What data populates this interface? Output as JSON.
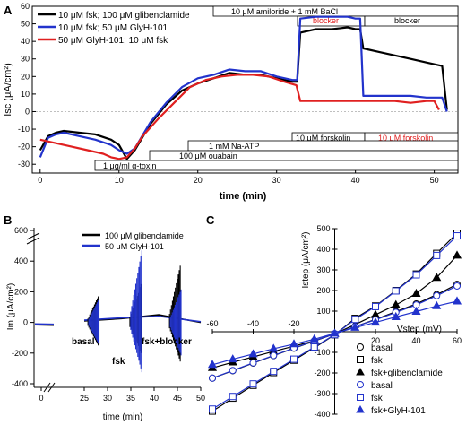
{
  "panel_labels": {
    "a": "A",
    "b": "B",
    "c": "C"
  },
  "colors": {
    "black": "#000000",
    "blue": "#2233cc",
    "red": "#e02020"
  },
  "chart_data": [
    {
      "panel": "A",
      "type": "line",
      "xlabel": "time (min)",
      "ylabel": "Isc (μA/cm²)",
      "xlim": [
        -1,
        53
      ],
      "ylim": [
        -35,
        60
      ],
      "xticks": [
        0,
        10,
        20,
        30,
        40,
        50
      ],
      "yticks": [
        -30,
        -20,
        -10,
        0,
        10,
        20,
        30,
        40,
        50,
        60
      ],
      "legend_position": "top-left",
      "series": [
        {
          "name": "10 μM fsk; 100 μM glibenclamide",
          "color": "#000000",
          "x": [
            0,
            1,
            2,
            3,
            5,
            7,
            9,
            10,
            11,
            12,
            14,
            16,
            18,
            20,
            22,
            24,
            26,
            28,
            30,
            32,
            32.6,
            33,
            35,
            37,
            39,
            40,
            40.6,
            41,
            43,
            45,
            47,
            49,
            51,
            51.6
          ],
          "y": [
            -22,
            -14,
            -12,
            -11,
            -12,
            -13,
            -16,
            -19,
            -27,
            -22,
            -7,
            4,
            12,
            16,
            19,
            22,
            21,
            21,
            19,
            17,
            17,
            45,
            47,
            47,
            48,
            47,
            47,
            36,
            34,
            32,
            30,
            28,
            26,
            1
          ]
        },
        {
          "name": "10 μM fsk; 50 μM GlyH-101",
          "color": "#2233cc",
          "x": [
            0,
            1,
            2,
            3,
            5,
            7,
            9,
            10,
            11,
            12,
            14,
            16,
            18,
            20,
            22,
            24,
            26,
            28,
            30,
            32,
            32.6,
            33,
            35,
            37,
            39,
            40,
            40.6,
            41,
            43,
            45,
            47,
            49,
            51,
            51.6
          ],
          "y": [
            -26,
            -15,
            -13,
            -12,
            -14,
            -16,
            -19,
            -22,
            -24,
            -21,
            -6,
            5,
            14,
            19,
            21,
            24,
            23,
            23,
            20,
            18,
            18,
            53,
            54,
            54,
            54,
            53,
            53,
            9,
            9,
            9,
            9,
            8,
            8,
            0
          ]
        },
        {
          "name": "50 μM GlyH-101; 10 μM fsk",
          "color": "#e02020",
          "x": [
            0,
            2,
            4,
            6,
            8,
            9,
            10,
            11,
            12,
            13,
            15,
            17,
            19,
            21,
            23,
            25,
            27,
            29,
            31,
            32.5,
            33,
            35,
            37,
            39,
            41,
            43,
            45,
            47,
            49,
            50,
            50.6
          ],
          "y": [
            -16,
            -18,
            -20,
            -22,
            -24,
            -26,
            -27,
            -26,
            -21,
            -14,
            -4,
            5,
            14,
            18,
            20,
            21,
            21,
            20,
            17,
            15,
            6,
            6,
            6,
            6,
            6,
            6,
            6,
            5,
            6,
            6,
            1
          ]
        }
      ],
      "annotations": {
        "amiloride": "10 μM amiloride + 1 mM BaCl",
        "blocker_1": "blocker",
        "blocker_2": "blocker",
        "forskolin_1": "10 μM forskolin",
        "forskolin_2": "10 μM forskolin",
        "atp": "1 mM Na-ATP",
        "ouabain": "100 μM ouabain",
        "toxin": "1 μg/ml α-toxin"
      }
    },
    {
      "panel": "B",
      "type": "line",
      "xlabel": "time (min)",
      "ylabel": "Im (μA/cm²)",
      "xlim": [
        0,
        50
      ],
      "ylim": [
        -400,
        600
      ],
      "xticks": [
        0,
        25,
        30,
        35,
        40,
        45,
        50
      ],
      "yticks": [
        -400,
        -200,
        0,
        200,
        400,
        600
      ],
      "axis_break": true,
      "legend_position": "top-right",
      "series": [
        {
          "name": "100 μM glibenclamide",
          "color": "#000000",
          "bursts": [
            {
              "t0": 25.8,
              "t1": 28.0,
              "max": 170,
              "min": -150
            },
            {
              "t0": 34.8,
              "t1": 37.2,
              "max": 250,
              "min": -200
            },
            {
              "t0": 43.3,
              "t1": 45.6,
              "max": 370,
              "min": -255
            }
          ]
        },
        {
          "name": "50 μM GlyH-101",
          "color": "#2233cc",
          "bursts": [
            {
              "t0": 25.8,
              "t1": 28.0,
              "max": 155,
              "min": -145
            },
            {
              "t0": 34.8,
              "t1": 37.2,
              "max": 470,
              "min": -325
            },
            {
              "t0": 43.3,
              "t1": 45.6,
              "max": 215,
              "min": -215
            }
          ]
        }
      ],
      "annotations": {
        "basal": "basal",
        "fsk": "fsk",
        "fsk_blocker": "fsk+blocker"
      }
    },
    {
      "panel": "C",
      "type": "scatter",
      "xlabel": "Vstep (mV)",
      "ylabel": "Istep (μA/cm²)",
      "xlim": [
        -60,
        60
      ],
      "ylim": [
        -400,
        500
      ],
      "xticks": [
        -60,
        -40,
        -20,
        20,
        40,
        60
      ],
      "yticks": [
        -400,
        -300,
        -200,
        -100,
        100,
        200,
        300,
        400,
        500
      ],
      "x": [
        -60,
        -50,
        -40,
        -30,
        -20,
        -10,
        0,
        10,
        20,
        30,
        40,
        50,
        60
      ],
      "legend_position": "bottom-right",
      "series": [
        {
          "name": "basal",
          "color": "#000000",
          "marker": "circle-open",
          "y": [
            -225,
            -189,
            -152,
            -116,
            -80,
            -45,
            -10,
            25,
            60,
            98,
            135,
            180,
            230
          ]
        },
        {
          "name": "fsk",
          "color": "#000000",
          "marker": "square-open",
          "y": [
            -385,
            -322,
            -260,
            -198,
            -138,
            -78,
            -15,
            65,
            125,
            200,
            280,
            380,
            478
          ]
        },
        {
          "name": "fsk+glibenclamide",
          "color": "#000000",
          "marker": "triangle-filled",
          "y": [
            -175,
            -148,
            -122,
            -95,
            -70,
            -44,
            -10,
            35,
            82,
            130,
            185,
            262,
            370
          ]
        },
        {
          "name": "basal",
          "color": "#2233cc",
          "marker": "circle-open",
          "y": [
            -225,
            -188,
            -151,
            -115,
            -79,
            -44,
            -10,
            25,
            58,
            94,
            130,
            175,
            222
          ]
        },
        {
          "name": "fsk",
          "color": "#2233cc",
          "marker": "square-open",
          "y": [
            -375,
            -314,
            -253,
            -192,
            -133,
            -74,
            -14,
            60,
            122,
            198,
            276,
            370,
            465
          ]
        },
        {
          "name": "fsk+GlyH-101",
          "color": "#2233cc",
          "marker": "triangle-filled",
          "y": [
            -160,
            -133,
            -108,
            -82,
            -60,
            -36,
            -8,
            20,
            45,
            72,
            98,
            125,
            148
          ]
        }
      ]
    }
  ]
}
